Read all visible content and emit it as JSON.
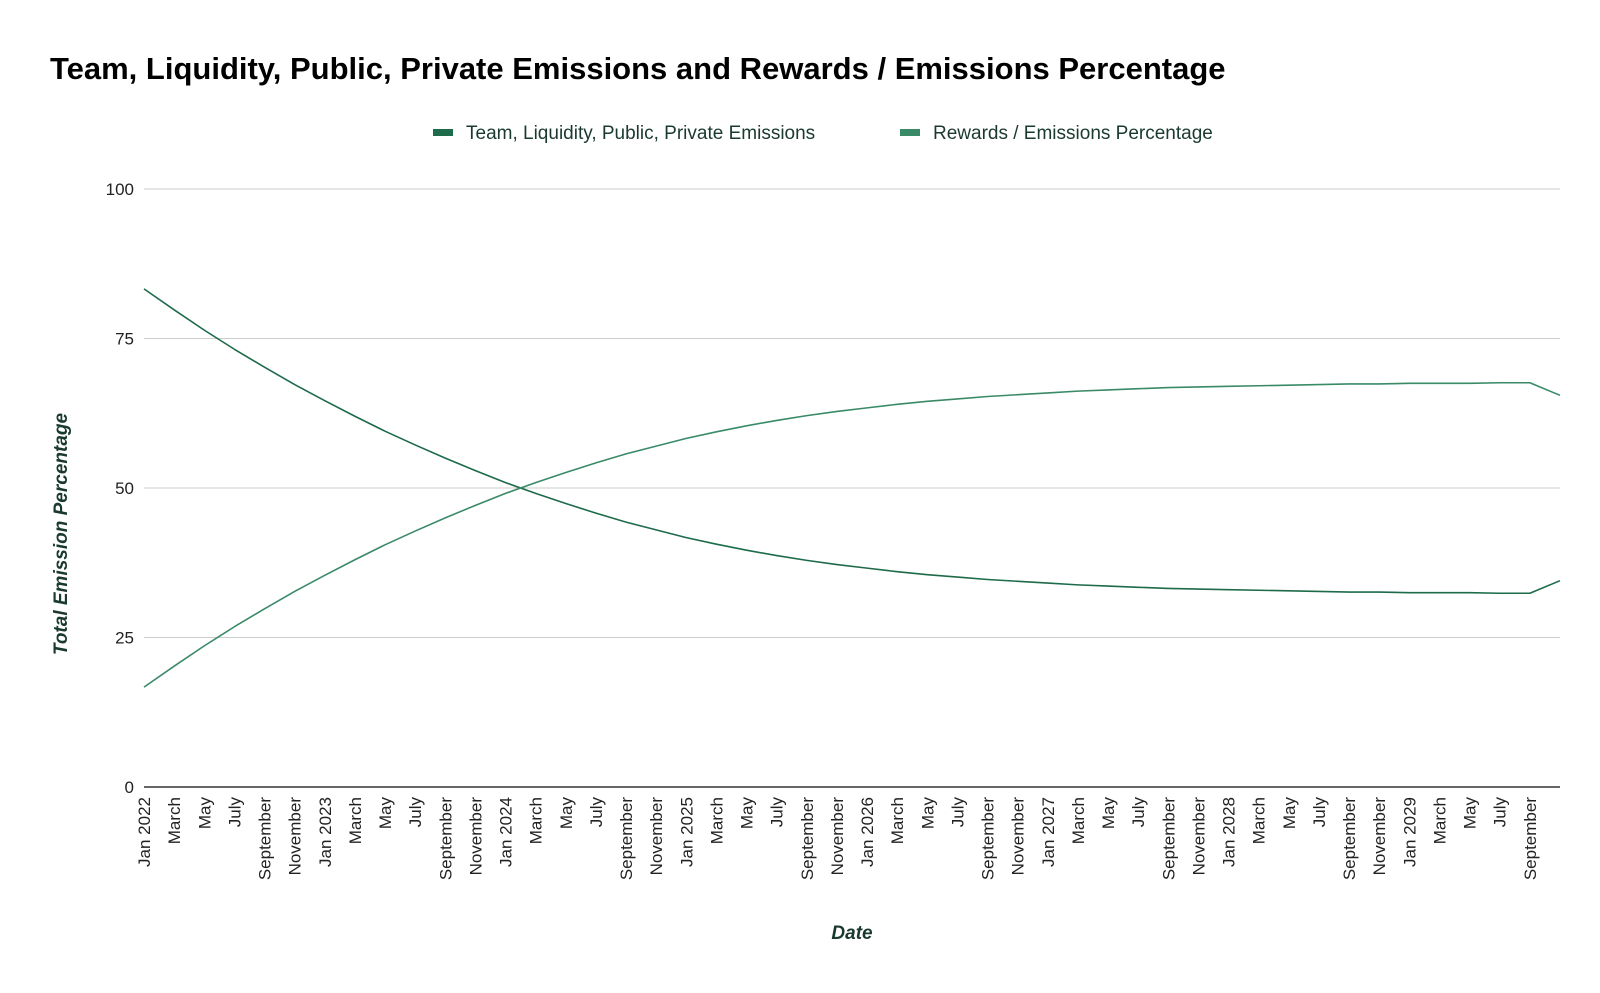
{
  "chart_data": {
    "type": "line",
    "title": "Team, Liquidity, Public, Private Emissions and Rewards / Emissions Percentage",
    "xlabel": "Date",
    "ylabel": "Total Emission Percentage",
    "ylim": [
      0,
      100
    ],
    "yticks": [
      0,
      25,
      50,
      75,
      100
    ],
    "grid": true,
    "legend_position": "top",
    "x_tick_labels": [
      "Jan 2022",
      "March",
      "May",
      "July",
      "September",
      "November",
      "Jan 2023",
      "March",
      "May",
      "July",
      "September",
      "November",
      "Jan 2024",
      "March",
      "May",
      "July",
      "September",
      "November",
      "Jan 2025",
      "March",
      "May",
      "July",
      "September",
      "November",
      "Jan 2026",
      "March",
      "May",
      "July",
      "September",
      "November",
      "Jan 2027",
      "March",
      "May",
      "July",
      "September",
      "November",
      "Jan 2028",
      "March",
      "May",
      "July",
      "September",
      "November",
      "Jan 2029",
      "March",
      "May",
      "July",
      "September"
    ],
    "x": [
      "2022-01",
      "2022-03",
      "2022-05",
      "2022-07",
      "2022-09",
      "2022-11",
      "2023-01",
      "2023-03",
      "2023-05",
      "2023-07",
      "2023-09",
      "2023-11",
      "2024-01",
      "2024-03",
      "2024-05",
      "2024-07",
      "2024-09",
      "2024-11",
      "2025-01",
      "2025-03",
      "2025-05",
      "2025-07",
      "2025-09",
      "2025-11",
      "2026-01",
      "2026-03",
      "2026-05",
      "2026-07",
      "2026-09",
      "2026-11",
      "2027-01",
      "2027-03",
      "2027-05",
      "2027-07",
      "2027-09",
      "2027-11",
      "2028-01",
      "2028-03",
      "2028-05",
      "2028-07",
      "2028-09",
      "2028-11",
      "2029-01",
      "2029-03",
      "2029-05",
      "2029-07",
      "2029-09",
      "2029-11"
    ],
    "series": [
      {
        "name": "Team, Liquidity, Public, Private Emissions",
        "color": "#1d6b4a",
        "values": [
          83.3,
          79.8,
          76.4,
          73.2,
          70.2,
          67.3,
          64.6,
          62.0,
          59.5,
          57.2,
          55.0,
          52.9,
          50.9,
          49.1,
          47.4,
          45.8,
          44.3,
          43.0,
          41.7,
          40.6,
          39.6,
          38.7,
          37.9,
          37.2,
          36.6,
          36.0,
          35.5,
          35.1,
          34.7,
          34.4,
          34.1,
          33.8,
          33.6,
          33.4,
          33.2,
          33.1,
          33.0,
          32.9,
          32.8,
          32.7,
          32.6,
          32.6,
          32.5,
          32.5,
          32.5,
          32.4,
          32.4,
          34.5
        ]
      },
      {
        "name": "Rewards / Emissions Percentage",
        "color": "#3a8a68",
        "values": [
          16.7,
          20.2,
          23.6,
          26.8,
          29.8,
          32.7,
          35.4,
          38.0,
          40.5,
          42.8,
          45.0,
          47.1,
          49.1,
          50.9,
          52.6,
          54.2,
          55.7,
          57.0,
          58.3,
          59.4,
          60.4,
          61.3,
          62.1,
          62.8,
          63.4,
          64.0,
          64.5,
          64.9,
          65.3,
          65.6,
          65.9,
          66.2,
          66.4,
          66.6,
          66.8,
          66.9,
          67.0,
          67.1,
          67.2,
          67.3,
          67.4,
          67.4,
          67.5,
          67.5,
          67.5,
          67.6,
          67.6,
          65.5
        ]
      }
    ]
  }
}
